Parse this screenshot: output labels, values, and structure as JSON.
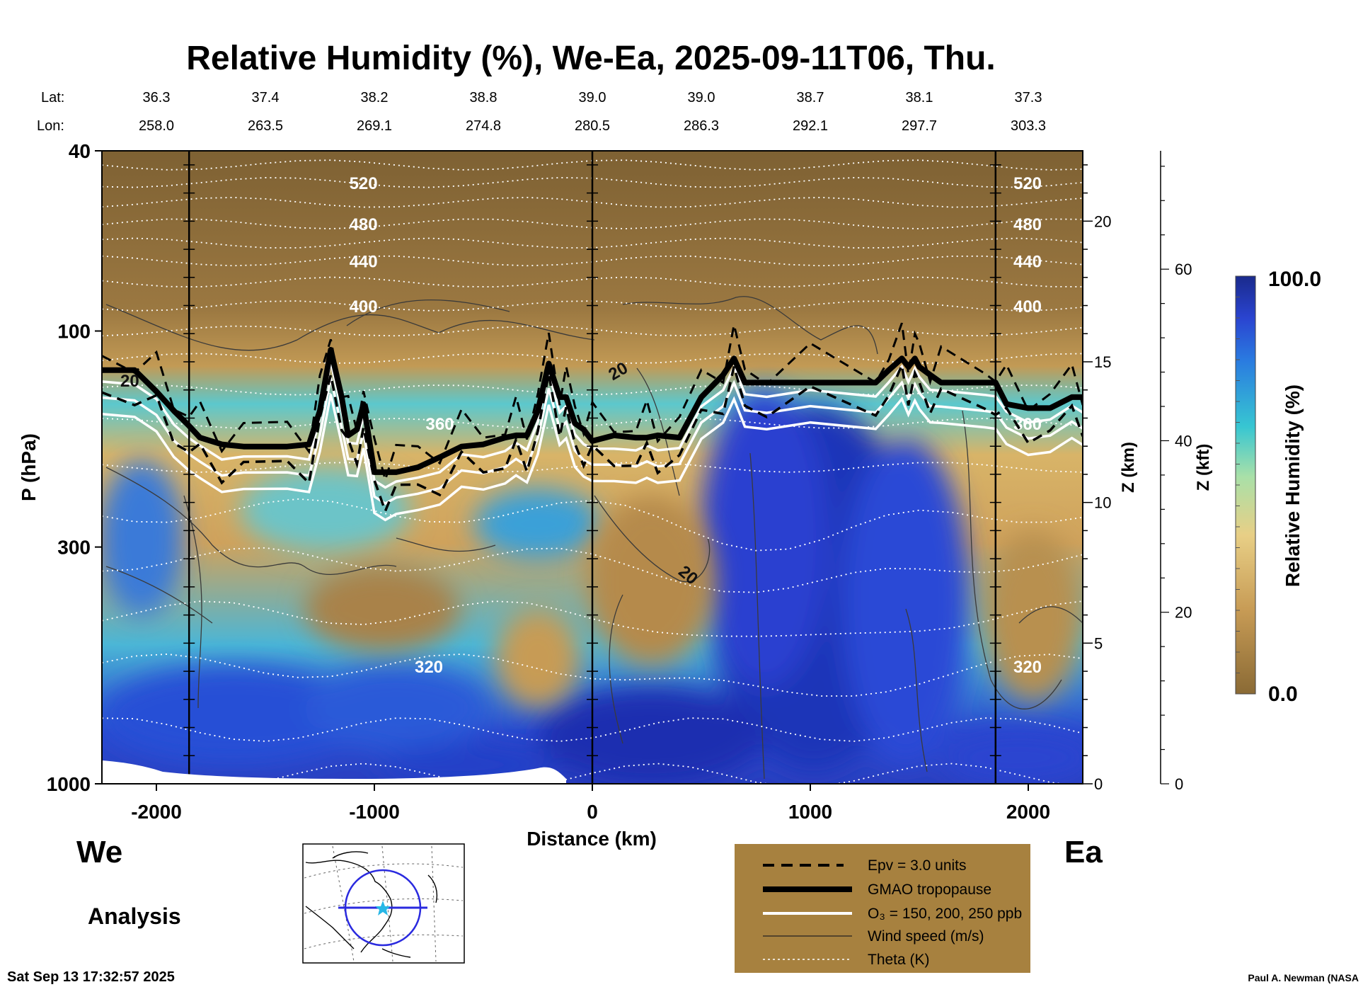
{
  "chart_data": {
    "type": "heatmap",
    "title": "Relative Humidity (%), We-Ea, 2025-09-11T06, Thu.",
    "xlabel": "Distance (km)",
    "ylabel": "P (hPa)",
    "z_km_label": "Z (km)",
    "z_kft_label": "Z (kft)",
    "colorbar_label": "Relative Humidity (%)",
    "colorbar_max": "100.0",
    "colorbar_min": "0.0",
    "xlim": [
      -2250,
      2250
    ],
    "ylim": [
      1000,
      40
    ],
    "x_ticks": [
      -2000,
      -1000,
      0,
      1000,
      2000
    ],
    "x_tick_labels": [
      "-2000",
      "-1000",
      "0",
      "1000",
      "2000"
    ],
    "p_ticks": [
      40,
      100,
      300,
      1000
    ],
    "p_tick_labels": [
      "40",
      "100",
      "300",
      "1000"
    ],
    "z_km_ticks": [
      0,
      5,
      10,
      15,
      20
    ],
    "z_km_labels": [
      "0",
      "5",
      "10",
      "15",
      "20"
    ],
    "z_kft_ticks": [
      0,
      20,
      40,
      60
    ],
    "z_kft_labels": [
      "0",
      "20",
      "40",
      "60"
    ],
    "lat_label": "Lat:",
    "lon_label": "Lon:",
    "coords": [
      {
        "x": -2000,
        "lat": "36.3",
        "lon": "258.0"
      },
      {
        "x": -1500,
        "lat": "37.4",
        "lon": "263.5"
      },
      {
        "x": -1000,
        "lat": "38.2",
        "lon": "269.1"
      },
      {
        "x": -500,
        "lat": "38.8",
        "lon": "274.8"
      },
      {
        "x": 0,
        "lat": "39.0",
        "lon": "280.5"
      },
      {
        "x": 500,
        "lat": "39.0",
        "lon": "286.3"
      },
      {
        "x": 1000,
        "lat": "38.7",
        "lon": "292.1"
      },
      {
        "x": 1500,
        "lat": "38.1",
        "lon": "297.7"
      },
      {
        "x": 2000,
        "lat": "37.3",
        "lon": "303.3"
      }
    ],
    "vertical_lines_km": [
      -1850,
      0,
      1850
    ],
    "tropopause": {
      "x": [
        -2250,
        -2100,
        -2000,
        -1920,
        -1850,
        -1800,
        -1700,
        -1600,
        -1400,
        -1300,
        -1250,
        -1200,
        -1150,
        -1120,
        -1080,
        -1050,
        -1000,
        -950,
        -900,
        -800,
        -700,
        -600,
        -500,
        -400,
        -350,
        -300,
        -250,
        -200,
        -150,
        -120,
        -80,
        -40,
        0,
        100,
        200,
        250,
        300,
        400,
        500,
        600,
        650,
        700,
        800,
        1000,
        1300,
        1360,
        1420,
        1450,
        1480,
        1500,
        1550,
        1600,
        1800,
        1850,
        1900,
        2000,
        2100,
        2200,
        2250
      ],
      "p": [
        122,
        122,
        136,
        150,
        162,
        172,
        178,
        180,
        180,
        178,
        150,
        110,
        140,
        170,
        165,
        145,
        205,
        205,
        205,
        200,
        190,
        180,
        178,
        172,
        170,
        170,
        150,
        118,
        140,
        140,
        160,
        165,
        175,
        170,
        172,
        172,
        170,
        172,
        140,
        125,
        115,
        130,
        130,
        130,
        130,
        122,
        115,
        120,
        115,
        120,
        125,
        130,
        130,
        130,
        145,
        148,
        148,
        140,
        140
      ]
    },
    "theta_levels": [
      {
        "label": "520",
        "p": 47
      },
      {
        "label": "480",
        "p": 58
      },
      {
        "label": "440",
        "p": 70
      },
      {
        "label": "400",
        "p": 88
      },
      {
        "label": "360",
        "p": 160
      },
      {
        "label": "320",
        "p": 550
      }
    ],
    "wind_label_value": "20",
    "side_labels": {
      "we": "We",
      "ea": "Ea",
      "analysis": "Analysis"
    },
    "legend": {
      "epv": "Epv = 3.0 units",
      "tropopause": "GMAO tropopause",
      "o3": "O₃ = 150, 200, 250 ppb",
      "wind": "Wind speed (m/s)",
      "theta": "Theta (K)"
    },
    "timestamp": "Sat Sep 13 17:32:57 2025",
    "credit": "Paul A. Newman (NASA",
    "colors": {
      "rh_low": "#8a6a35",
      "rh_mid": "#d8b165",
      "rh_cyan": "#37c6d2",
      "rh_blue": "#2a44d0",
      "rh_dark": "#1a2a8c"
    }
  }
}
